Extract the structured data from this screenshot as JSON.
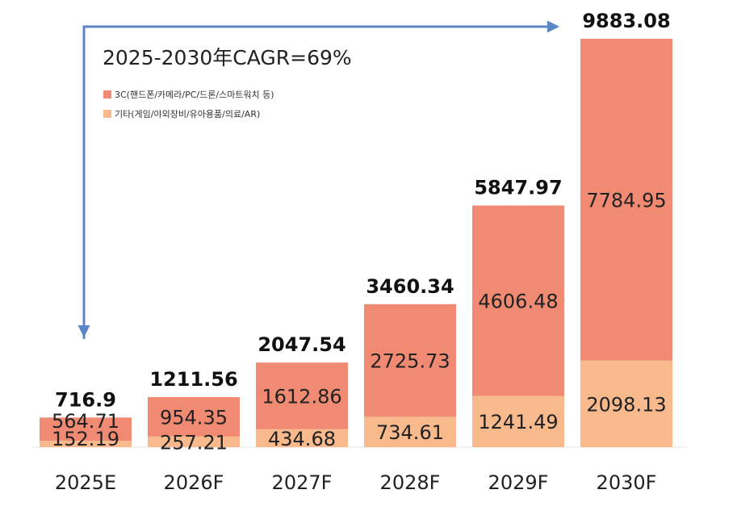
{
  "chart_data": {
    "type": "bar",
    "stacked": true,
    "annotation": "2025-2030年CAGR=69%",
    "categories": [
      "2025E",
      "2026F",
      "2027F",
      "2028F",
      "2029F",
      "2030F"
    ],
    "series": [
      {
        "name": "기타(게임/야외장비/유아용품/의료/AR)",
        "color": "#f8b98d",
        "values": [
          152.19,
          257.21,
          434.68,
          734.61,
          1241.49,
          2098.13
        ]
      },
      {
        "name": "3C(핸드폰/카메라/PC/드론/스마트워치 등)",
        "color": "#f08a72",
        "values": [
          564.71,
          954.35,
          1612.86,
          2725.73,
          4606.48,
          7784.95
        ]
      }
    ],
    "totals": [
      "716.9",
      "1211.56",
      "2047.54",
      "3460.34",
      "5847.97",
      "9883.08"
    ],
    "legend_position": "top-left",
    "grid": false,
    "arrow_color": "#5b86c5"
  }
}
